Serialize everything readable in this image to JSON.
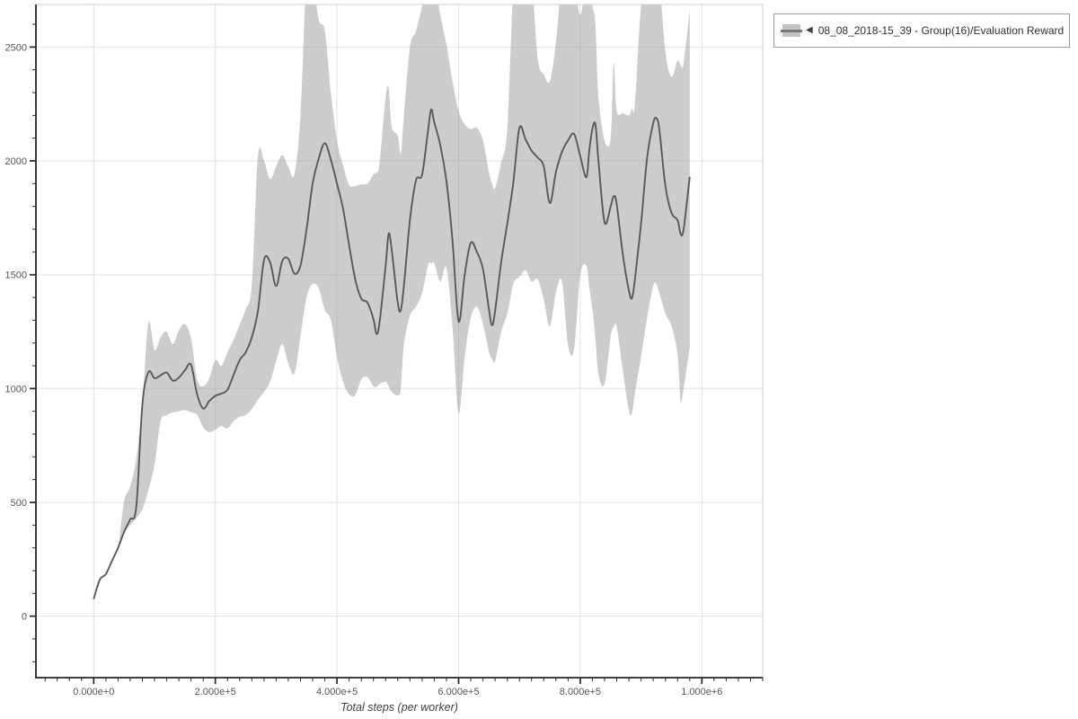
{
  "legend": {
    "prefix": "◀",
    "label": "08_08_2018-15_39 - Group(16)/Evaluation Reward"
  },
  "colors": {
    "mean_line": "#595959",
    "band_fill": "rgba(158,158,158,0.52)",
    "grid": "#e2e2e2",
    "axis_dark": "#262626",
    "spine_light": "#cfcfcf",
    "tick_label": "#555555",
    "axis_label": "#3f3f3f"
  },
  "chart_data": {
    "type": "line",
    "title": "",
    "xlabel": "Total steps (per worker)",
    "ylabel": "",
    "grid": true,
    "legend_position": "top-right-outside",
    "xlim": [
      -95000,
      1100000
    ],
    "ylim": [
      -270,
      2687
    ],
    "x_ticks": {
      "major": [
        0,
        200000,
        400000,
        600000,
        800000,
        1000000
      ],
      "labels": [
        "0.000e+0",
        "2.000e+5",
        "4.000e+5",
        "6.000e+5",
        "8.000e+5",
        "1.000e+6"
      ],
      "minor_step": 20000
    },
    "y_ticks": {
      "major": [
        0,
        500,
        1000,
        1500,
        2000,
        2500
      ],
      "labels": [
        "0",
        "500",
        "1000",
        "1500",
        "2000",
        "2500"
      ],
      "minor_step": 100
    },
    "series": [
      {
        "name": "08_08_2018-15_39 - Group(16)/Evaluation Reward",
        "x": [
          0,
          10000,
          20000,
          30000,
          40000,
          50000,
          60000,
          70000,
          80000,
          90000,
          100000,
          110000,
          120000,
          130000,
          140000,
          150000,
          160000,
          170000,
          180000,
          190000,
          200000,
          210000,
          220000,
          230000,
          240000,
          250000,
          260000,
          270000,
          280000,
          290000,
          300000,
          310000,
          320000,
          330000,
          340000,
          350000,
          360000,
          370000,
          380000,
          390000,
          400000,
          410000,
          420000,
          430000,
          440000,
          450000,
          460000,
          465000,
          470000,
          480000,
          485000,
          490000,
          500000,
          505000,
          510000,
          520000,
          530000,
          540000,
          550000,
          555000,
          560000,
          570000,
          580000,
          590000,
          600000,
          610000,
          620000,
          630000,
          640000,
          650000,
          655000,
          660000,
          670000,
          680000,
          690000,
          700000,
          710000,
          720000,
          730000,
          740000,
          750000,
          760000,
          770000,
          780000,
          790000,
          800000,
          810000,
          815000,
          820000,
          825000,
          830000,
          840000,
          850000,
          855000,
          860000,
          870000,
          880000,
          885000,
          890000,
          900000,
          910000,
          920000,
          925000,
          930000,
          940000,
          950000,
          960000,
          965000,
          970000,
          980000
        ],
        "mean": [
          75,
          160,
          185,
          243,
          300,
          370,
          425,
          480,
          930,
          1072,
          1045,
          1058,
          1070,
          1035,
          1048,
          1080,
          1105,
          975,
          912,
          945,
          968,
          978,
          995,
          1060,
          1125,
          1160,
          1225,
          1340,
          1565,
          1555,
          1450,
          1560,
          1570,
          1505,
          1540,
          1700,
          1900,
          2010,
          2078,
          2005,
          1900,
          1790,
          1630,
          1480,
          1395,
          1378,
          1305,
          1240,
          1290,
          1540,
          1680,
          1610,
          1375,
          1345,
          1450,
          1740,
          1915,
          1940,
          2140,
          2226,
          2170,
          2068,
          1910,
          1650,
          1295,
          1500,
          1640,
          1600,
          1525,
          1345,
          1278,
          1340,
          1555,
          1725,
          1905,
          2145,
          2095,
          2045,
          2015,
          1975,
          1815,
          1950,
          2040,
          2090,
          2118,
          2020,
          1928,
          2050,
          2140,
          2160,
          2000,
          1730,
          1800,
          1845,
          1810,
          1590,
          1430,
          1397,
          1480,
          1725,
          2015,
          2165,
          2187,
          2140,
          1890,
          1772,
          1740,
          1680,
          1700,
          1930
        ],
        "band_low": [
          75,
          160,
          185,
          243,
          298,
          365,
          400,
          430,
          470,
          555,
          665,
          855,
          883,
          895,
          900,
          905,
          895,
          885,
          830,
          808,
          820,
          835,
          825,
          857,
          877,
          884,
          910,
          950,
          985,
          1030,
          1120,
          1195,
          1110,
          1065,
          1230,
          1400,
          1460,
          1440,
          1345,
          1300,
          1140,
          1030,
          975,
          970,
          1040,
          1050,
          1010,
          1008,
          1020,
          1030,
          1010,
          985,
          970,
          1000,
          1190,
          1320,
          1360,
          1420,
          1545,
          1550,
          1550,
          1470,
          1530,
          1270,
          890,
          1140,
          1310,
          1360,
          1285,
          1160,
          1130,
          1120,
          1250,
          1330,
          1460,
          1490,
          1520,
          1470,
          1480,
          1390,
          1272,
          1420,
          1470,
          1190,
          1175,
          1500,
          1540,
          1440,
          1350,
          1220,
          1060,
          1020,
          1230,
          1270,
          1272,
          1080,
          905,
          890,
          980,
          1140,
          1310,
          1450,
          1460,
          1420,
          1330,
          1275,
          1150,
          945,
          1000,
          1180
        ],
        "band_high": [
          75,
          160,
          185,
          243,
          302,
          505,
          570,
          690,
          940,
          1290,
          1170,
          1225,
          1250,
          1195,
          1255,
          1283,
          1220,
          1040,
          1010,
          1045,
          1125,
          1100,
          1160,
          1213,
          1280,
          1350,
          1455,
          2020,
          2000,
          1920,
          1975,
          2025,
          1975,
          1940,
          2200,
          2800,
          2800,
          2620,
          2570,
          2300,
          2090,
          1980,
          1895,
          1890,
          1897,
          1900,
          1940,
          1950,
          1990,
          2280,
          2320,
          2150,
          2110,
          2030,
          2200,
          2500,
          2570,
          2680,
          2800,
          2800,
          2800,
          2640,
          2510,
          2350,
          2220,
          2160,
          2140,
          2145,
          2090,
          1950,
          1900,
          1880,
          1990,
          2140,
          2750,
          2800,
          2800,
          2800,
          2450,
          2380,
          2350,
          2520,
          2800,
          2800,
          2800,
          2640,
          2800,
          2750,
          2680,
          2600,
          2280,
          2090,
          2100,
          2430,
          2220,
          2210,
          2200,
          2230,
          2250,
          2680,
          2800,
          2800,
          2800,
          2800,
          2480,
          2370,
          2440,
          2420,
          2430,
          2660
        ]
      }
    ]
  }
}
